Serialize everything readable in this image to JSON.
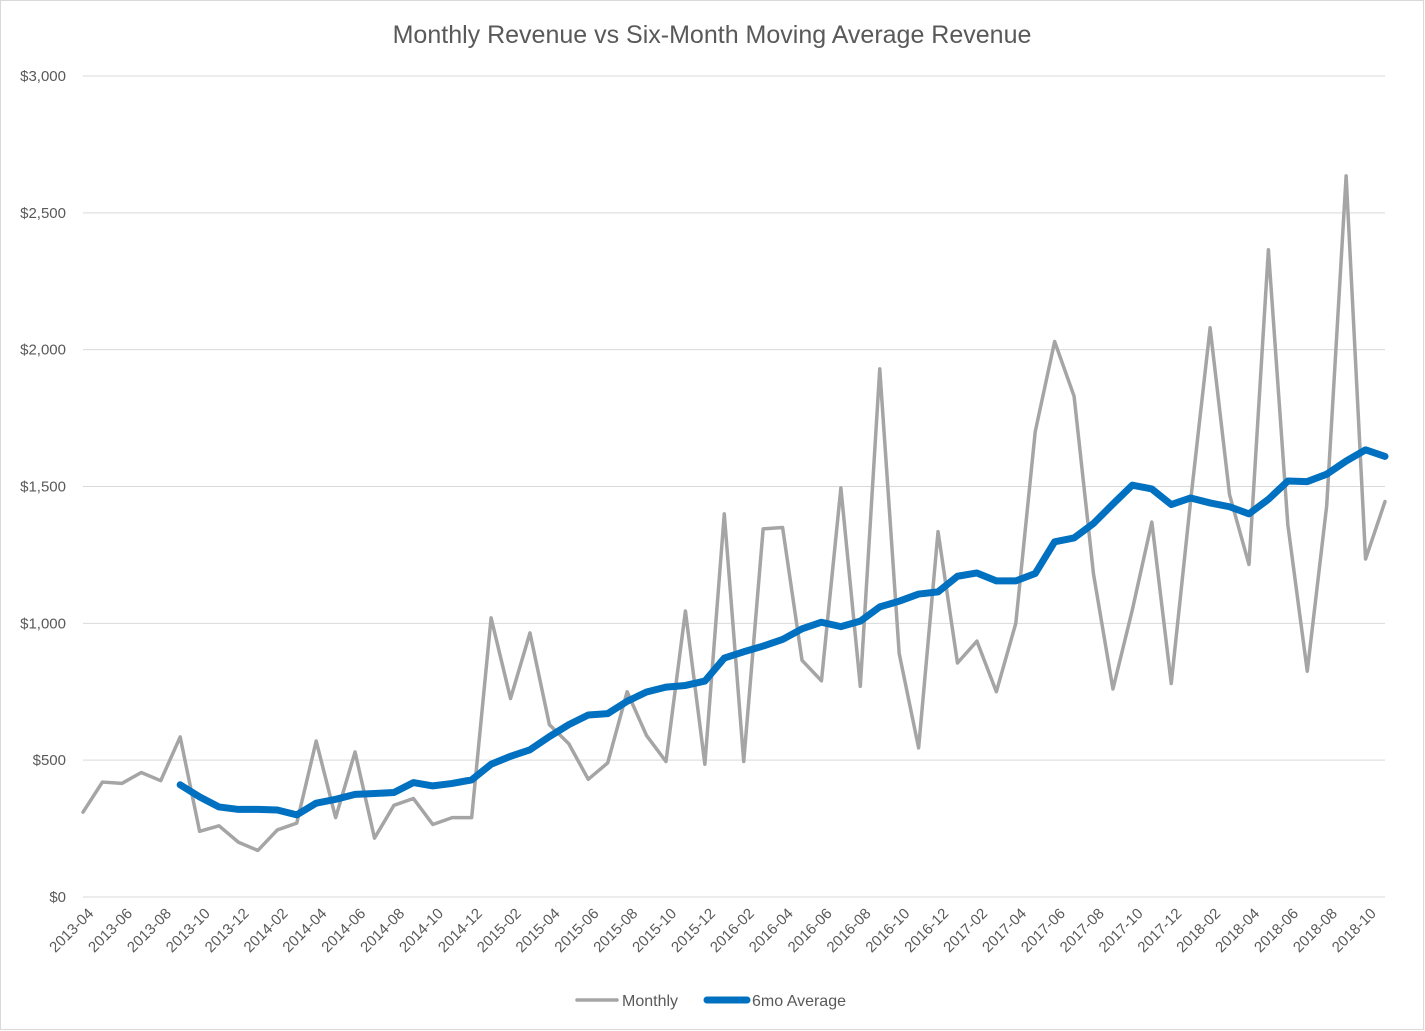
{
  "chart_data": {
    "type": "line",
    "title": "Monthly Revenue vs Six-Month Moving Average Revenue",
    "xlabel": "",
    "ylabel": "",
    "ylim": [
      0,
      3000
    ],
    "y_ticks": [
      0,
      500,
      1000,
      1500,
      2000,
      2500,
      3000
    ],
    "y_tick_labels": [
      "$0",
      "$500",
      "$1,000",
      "$1,500",
      "$2,000",
      "$2,500",
      "$3,000"
    ],
    "grid": true,
    "legend_position": "bottom",
    "x": [
      "2013-04",
      "2013-05",
      "2013-06",
      "2013-07",
      "2013-08",
      "2013-09",
      "2013-10",
      "2013-11",
      "2013-12",
      "2014-01",
      "2014-02",
      "2014-03",
      "2014-04",
      "2014-05",
      "2014-06",
      "2014-07",
      "2014-08",
      "2014-09",
      "2014-10",
      "2014-11",
      "2014-12",
      "2015-01",
      "2015-02",
      "2015-03",
      "2015-04",
      "2015-05",
      "2015-06",
      "2015-07",
      "2015-08",
      "2015-09",
      "2015-10",
      "2015-11",
      "2015-12",
      "2016-01",
      "2016-02",
      "2016-03",
      "2016-04",
      "2016-05",
      "2016-06",
      "2016-07",
      "2016-08",
      "2016-09",
      "2016-10",
      "2016-11",
      "2016-12",
      "2017-01",
      "2017-02",
      "2017-03",
      "2017-04",
      "2017-05",
      "2017-06",
      "2017-07",
      "2017-08",
      "2017-09",
      "2017-10",
      "2017-11",
      "2017-12",
      "2018-01",
      "2018-02",
      "2018-03",
      "2018-04",
      "2018-05",
      "2018-06",
      "2018-07",
      "2018-08",
      "2018-09",
      "2018-10",
      "2018-11"
    ],
    "x_tick_labels": [
      "2013-04",
      "2013-06",
      "2013-08",
      "2013-10",
      "2013-12",
      "2014-02",
      "2014-04",
      "2014-06",
      "2014-08",
      "2014-10",
      "2014-12",
      "2015-02",
      "2015-04",
      "2015-06",
      "2015-08",
      "2015-10",
      "2015-12",
      "2016-02",
      "2016-04",
      "2016-06",
      "2016-08",
      "2016-10",
      "2016-12",
      "2017-02",
      "2017-04",
      "2017-06",
      "2017-08",
      "2017-10",
      "2017-12",
      "2018-02",
      "2018-04",
      "2018-06",
      "2018-08",
      "2018-10"
    ],
    "series": [
      {
        "name": "Monthly",
        "color": "#a5a5a5",
        "values": [
          310,
          420,
          415,
          455,
          425,
          585,
          240,
          260,
          200,
          170,
          245,
          270,
          570,
          290,
          530,
          215,
          335,
          360,
          265,
          290,
          290,
          1020,
          725,
          965,
          630,
          560,
          430,
          490,
          750,
          590,
          495,
          1045,
          485,
          1400,
          495,
          1345,
          1350,
          865,
          790,
          1495,
          770,
          1930,
          890,
          545,
          1335,
          855,
          935,
          750,
          1000,
          1700,
          2030,
          1830,
          1180,
          760,
          1050,
          1370,
          780,
          1450,
          2080,
          1470,
          1215,
          2365,
          1360,
          825,
          1430,
          2635,
          1235,
          1445
        ]
      },
      {
        "name": "6mo Average",
        "color": "#0070c0",
        "values": [
          null,
          null,
          null,
          null,
          null,
          410,
          366,
          329,
          320,
          320,
          318,
          300,
          343,
          357,
          375,
          378,
          382,
          418,
          406,
          415,
          428,
          485,
          514,
          538,
          586,
          630,
          665,
          670,
          715,
          749,
          767,
          773,
          789,
          873,
          896,
          917,
          941,
          980,
          1004,
          988,
          1008,
          1060,
          1081,
          1107,
          1115,
          1172,
          1184,
          1155,
          1155,
          1182,
          1298,
          1312,
          1365,
          1436,
          1505,
          1491,
          1434,
          1458,
          1440,
          1426,
          1400,
          1453,
          1520,
          1518,
          1545,
          1593,
          1634,
          1610
        ]
      }
    ]
  }
}
